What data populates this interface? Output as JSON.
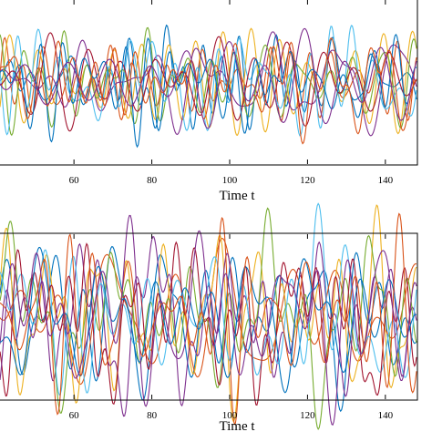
{
  "chart_data": [
    {
      "type": "line",
      "xlabel": "Time t",
      "x_ticks": [
        60,
        80,
        100,
        120,
        140
      ],
      "xlim": [
        41,
        148
      ],
      "ylim": [
        -1.4,
        1.4
      ],
      "grid": false,
      "series_colors": [
        "#0072BD",
        "#D95319",
        "#EDB120",
        "#7E2F8E",
        "#77AC30",
        "#4DBEEE",
        "#A2142F",
        "#0072BD",
        "#D95319",
        "#7E2F8E"
      ],
      "seed": 7,
      "amplitude": 0.55
    },
    {
      "type": "line",
      "xlabel": "Time t",
      "x_ticks": [
        60,
        80,
        100,
        120,
        140
      ],
      "xlim": [
        41,
        148
      ],
      "ylim": [
        -1.4,
        1.4
      ],
      "grid": false,
      "series_colors": [
        "#0072BD",
        "#D95319",
        "#EDB120",
        "#7E2F8E",
        "#77AC30",
        "#4DBEEE",
        "#A2142F",
        "#0072BD",
        "#D95319",
        "#7E2F8E"
      ],
      "seed": 19,
      "amplitude": 0.95
    }
  ]
}
